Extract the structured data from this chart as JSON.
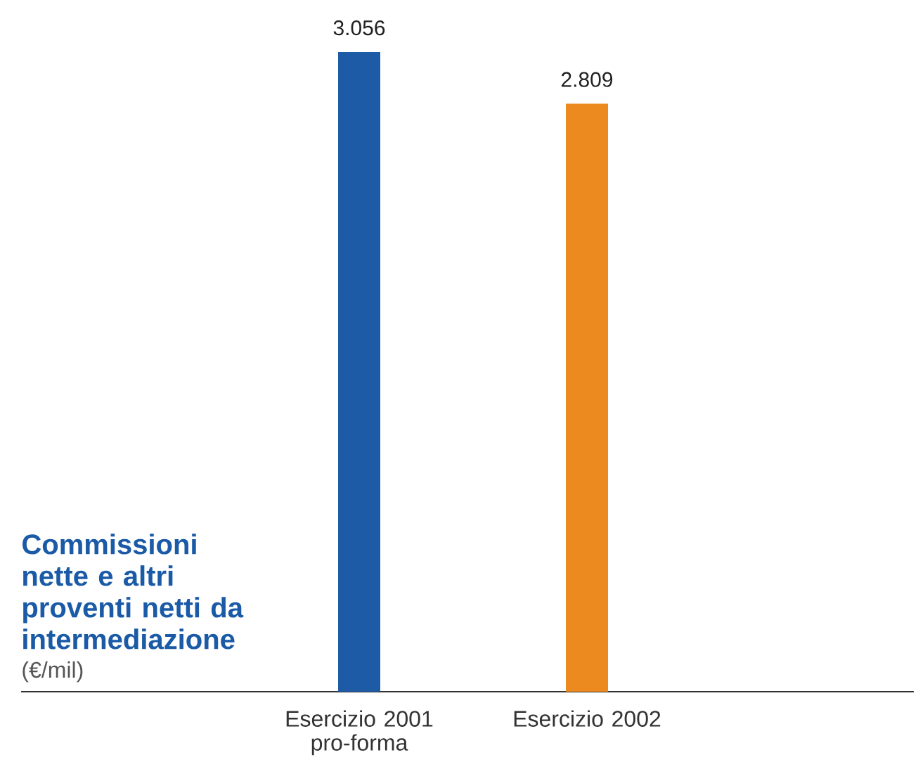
{
  "chart_data": {
    "type": "bar",
    "title": "Commissioni nette e altri proventi netti da intermediazione",
    "subtitle": "(€/mil)",
    "categories": [
      "Esercizio 2001 pro-forma",
      "Esercizio 2002"
    ],
    "values": [
      3056,
      2809
    ],
    "colors": [
      "#1e5ba6",
      "#ec8a1f"
    ],
    "value_labels": [
      "3.056",
      "2.809"
    ]
  }
}
